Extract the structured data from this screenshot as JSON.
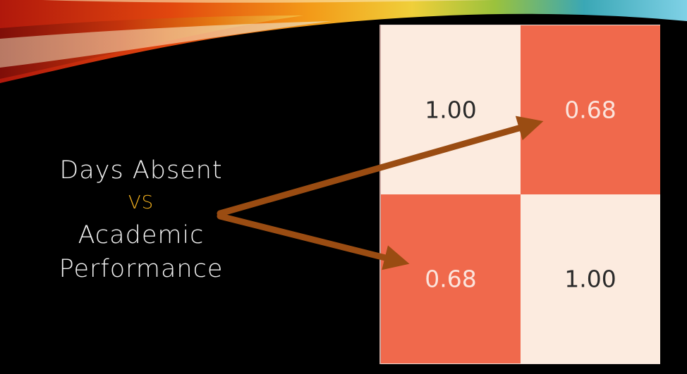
{
  "slide": {
    "label_line1": "Days Absent",
    "label_vs": "VS",
    "label_line2": "Academic",
    "label_line3": "Performance",
    "text_color": "#f2f2f2",
    "vs_color": "#f2b01e",
    "arrow_color": "#9a4c12"
  },
  "chart_data": {
    "type": "heatmap",
    "rows": 2,
    "cols": 2,
    "values": [
      [
        1.0,
        0.68
      ],
      [
        0.68,
        1.0
      ]
    ],
    "labels": [
      [
        "1.00",
        "0.68"
      ],
      [
        "0.68",
        "1.00"
      ]
    ],
    "colors": {
      "high": "#fcebdf",
      "low": "#f0694c",
      "high_text": "#2a2a2a",
      "low_text": "#fbe4dc"
    }
  }
}
